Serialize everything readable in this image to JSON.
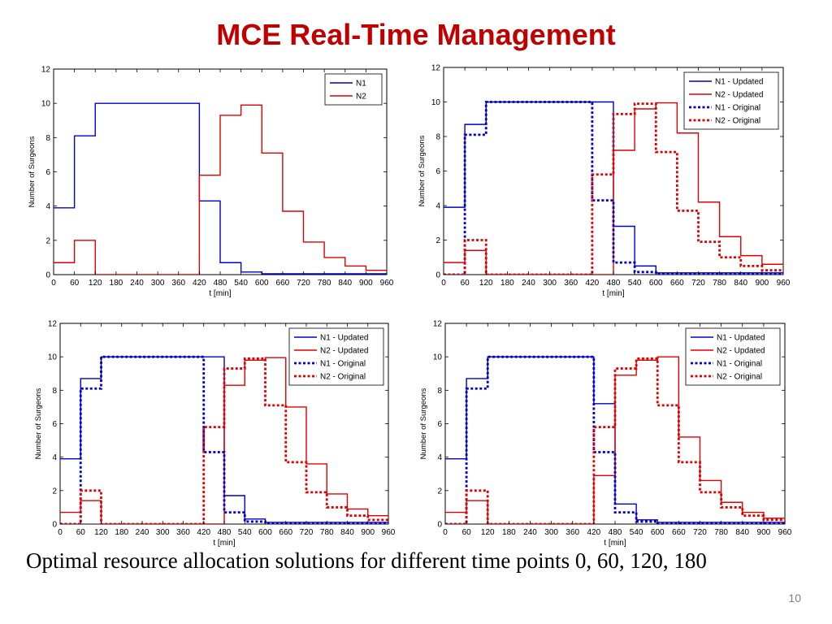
{
  "slide": {
    "title": "MCE Real-Time Management",
    "caption": "Optimal resource allocation solutions for different time points 0, 60, 120, 180",
    "page_number": "10"
  },
  "colors": {
    "n1": "#0000cc",
    "n2": "#e00000",
    "title": "#c00000"
  },
  "chart_data": [
    {
      "type": "line",
      "step": true,
      "xlabel": "t [min]",
      "ylabel": "Number of Surgeons",
      "xlim": [
        0,
        960
      ],
      "ylim": [
        0,
        12
      ],
      "xticks": [
        0,
        60,
        120,
        180,
        240,
        300,
        360,
        420,
        480,
        540,
        600,
        660,
        720,
        780,
        840,
        900,
        960
      ],
      "yticks": [
        0,
        2,
        4,
        6,
        8,
        10,
        12
      ],
      "legend_position": "top-right",
      "grid": false,
      "series": [
        {
          "name": "N1",
          "style": "solid",
          "color": "#0000cc",
          "x": [
            0,
            60,
            120,
            420,
            480,
            540,
            600,
            960
          ],
          "y": [
            3.9,
            8.1,
            10.0,
            4.3,
            0.7,
            0.15,
            0.05,
            0.05
          ]
        },
        {
          "name": "N2",
          "style": "solid",
          "color": "#e00000",
          "x": [
            0,
            60,
            120,
            420,
            480,
            540,
            600,
            660,
            720,
            780,
            840,
            900,
            960
          ],
          "y": [
            0.7,
            2.0,
            0.0,
            5.8,
            9.3,
            9.9,
            7.1,
            3.7,
            1.9,
            1.0,
            0.5,
            0.25,
            0.25
          ]
        }
      ]
    },
    {
      "type": "line",
      "step": true,
      "xlabel": "t [min]",
      "ylabel": "Number of Surgeons",
      "xlim": [
        0,
        960
      ],
      "ylim": [
        0,
        12
      ],
      "xticks": [
        0,
        60,
        120,
        180,
        240,
        300,
        360,
        420,
        480,
        540,
        600,
        660,
        720,
        780,
        840,
        900,
        960
      ],
      "yticks": [
        0,
        2,
        4,
        6,
        8,
        10,
        12
      ],
      "legend_position": "top-right",
      "grid": false,
      "series": [
        {
          "name": "N1 - Updated",
          "style": "solid",
          "color": "#0000cc",
          "x": [
            0,
            60,
            120,
            480,
            540,
            600,
            960
          ],
          "y": [
            3.9,
            8.7,
            10.0,
            2.8,
            0.5,
            0.1,
            0.1
          ]
        },
        {
          "name": "N2 - Updated",
          "style": "solid",
          "color": "#e00000",
          "x": [
            0,
            60,
            120,
            480,
            540,
            600,
            660,
            720,
            780,
            840,
            900,
            960
          ],
          "y": [
            0.7,
            1.4,
            0.0,
            7.2,
            9.6,
            9.95,
            8.2,
            4.2,
            2.2,
            1.1,
            0.6,
            0.6
          ]
        },
        {
          "name": "N1 - Original",
          "style": "dotted",
          "color": "#0000cc",
          "x": [
            0,
            60,
            120,
            420,
            480,
            540,
            600,
            960
          ],
          "y": [
            0.0,
            8.1,
            10.0,
            4.3,
            0.7,
            0.15,
            0.05,
            0.05
          ]
        },
        {
          "name": "N2 - Original",
          "style": "dotted",
          "color": "#e00000",
          "x": [
            0,
            60,
            120,
            420,
            480,
            540,
            600,
            660,
            720,
            780,
            840,
            900,
            960
          ],
          "y": [
            0.0,
            2.0,
            0.0,
            5.8,
            9.3,
            9.9,
            7.1,
            3.7,
            1.9,
            1.0,
            0.5,
            0.25,
            0.25
          ]
        }
      ]
    },
    {
      "type": "line",
      "step": true,
      "xlabel": "t [min]",
      "ylabel": "Number of Surgeons",
      "xlim": [
        0,
        960
      ],
      "ylim": [
        0,
        12
      ],
      "xticks": [
        0,
        60,
        120,
        180,
        240,
        300,
        360,
        420,
        480,
        540,
        600,
        660,
        720,
        780,
        840,
        900,
        960
      ],
      "yticks": [
        0,
        2,
        4,
        6,
        8,
        10,
        12
      ],
      "legend_position": "top-right",
      "grid": false,
      "series": [
        {
          "name": "N1 - Updated",
          "style": "solid",
          "color": "#0000cc",
          "x": [
            0,
            60,
            120,
            480,
            540,
            600,
            960
          ],
          "y": [
            3.9,
            8.7,
            10.0,
            1.7,
            0.3,
            0.1,
            0.1
          ]
        },
        {
          "name": "N2 - Updated",
          "style": "solid",
          "color": "#e00000",
          "x": [
            0,
            60,
            120,
            480,
            540,
            600,
            660,
            720,
            780,
            840,
            900,
            960
          ],
          "y": [
            0.7,
            1.4,
            0.0,
            8.3,
            9.8,
            9.95,
            7.0,
            3.6,
            1.8,
            0.9,
            0.5,
            0.5
          ]
        },
        {
          "name": "N1 - Original",
          "style": "dotted",
          "color": "#0000cc",
          "x": [
            0,
            60,
            120,
            420,
            480,
            540,
            600,
            960
          ],
          "y": [
            0.0,
            8.1,
            10.0,
            4.3,
            0.7,
            0.15,
            0.05,
            0.05
          ]
        },
        {
          "name": "N2 - Original",
          "style": "dotted",
          "color": "#e00000",
          "x": [
            0,
            60,
            120,
            420,
            480,
            540,
            600,
            660,
            720,
            780,
            840,
            900,
            960
          ],
          "y": [
            0.0,
            2.0,
            0.0,
            5.8,
            9.3,
            9.9,
            7.1,
            3.7,
            1.9,
            1.0,
            0.5,
            0.25,
            0.25
          ]
        }
      ]
    },
    {
      "type": "line",
      "step": true,
      "xlabel": "t [min]",
      "ylabel": "Number of Surgeons",
      "xlim": [
        0,
        960
      ],
      "ylim": [
        0,
        12
      ],
      "xticks": [
        0,
        60,
        120,
        180,
        240,
        300,
        360,
        420,
        480,
        540,
        600,
        660,
        720,
        780,
        840,
        900,
        960
      ],
      "yticks": [
        0,
        2,
        4,
        6,
        8,
        10,
        12
      ],
      "legend_position": "top-right",
      "grid": false,
      "series": [
        {
          "name": "N1 - Updated",
          "style": "solid",
          "color": "#0000cc",
          "x": [
            0,
            60,
            120,
            420,
            480,
            540,
            600,
            960
          ],
          "y": [
            3.9,
            8.7,
            10.0,
            7.2,
            1.2,
            0.25,
            0.1,
            0.1
          ]
        },
        {
          "name": "N2 - Updated",
          "style": "solid",
          "color": "#e00000",
          "x": [
            0,
            60,
            120,
            420,
            480,
            540,
            600,
            660,
            720,
            780,
            840,
            900,
            960
          ],
          "y": [
            0.7,
            1.4,
            0.0,
            2.9,
            8.9,
            9.8,
            10.0,
            5.2,
            2.6,
            1.3,
            0.7,
            0.35,
            0.35
          ]
        },
        {
          "name": "N1 - Original",
          "style": "dotted",
          "color": "#0000cc",
          "x": [
            0,
            60,
            120,
            420,
            480,
            540,
            600,
            960
          ],
          "y": [
            0.0,
            8.1,
            10.0,
            4.3,
            0.7,
            0.15,
            0.05,
            0.05
          ]
        },
        {
          "name": "N2 - Original",
          "style": "dotted",
          "color": "#e00000",
          "x": [
            0,
            60,
            120,
            420,
            480,
            540,
            600,
            660,
            720,
            780,
            840,
            900,
            960
          ],
          "y": [
            0.0,
            2.0,
            0.0,
            5.8,
            9.3,
            9.9,
            7.1,
            3.7,
            1.9,
            1.0,
            0.5,
            0.25,
            0.25
          ]
        }
      ]
    }
  ]
}
